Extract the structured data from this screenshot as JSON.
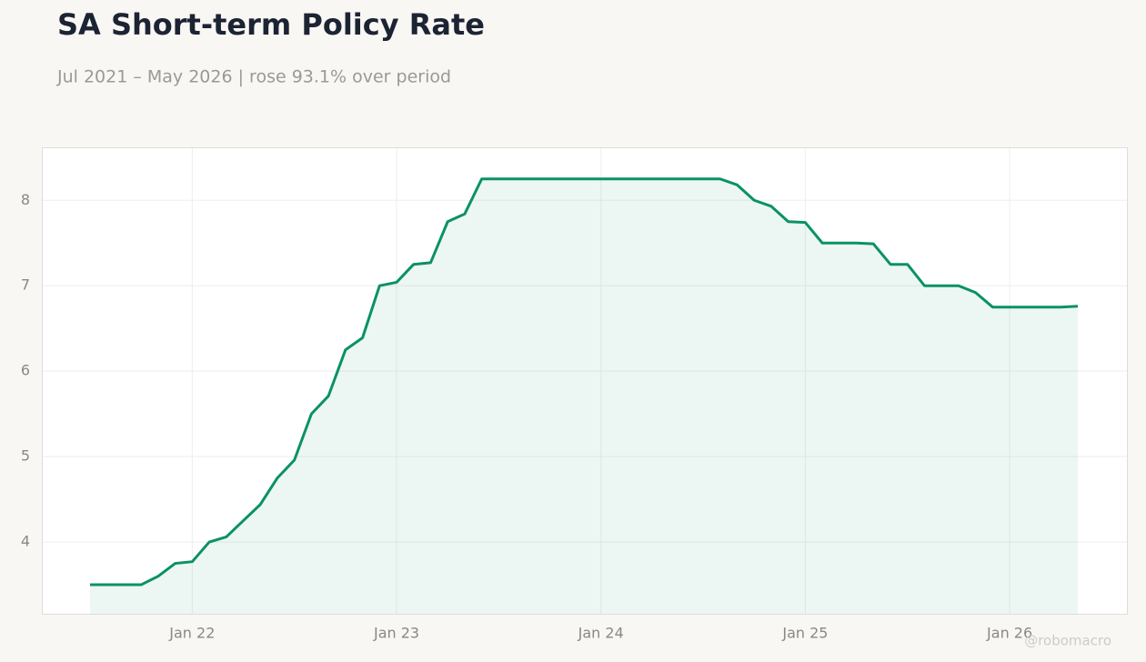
{
  "chart_data": {
    "type": "line",
    "title": "SA Short-term Policy Rate",
    "subtitle": "Jul 2021 – May 2026 | rose 93.1% over period",
    "watermark": "@robomacro",
    "x": [
      "2021-07",
      "2021-08",
      "2021-09",
      "2021-10",
      "2021-11",
      "2021-12",
      "2022-01",
      "2022-02",
      "2022-03",
      "2022-04",
      "2022-05",
      "2022-06",
      "2022-07",
      "2022-08",
      "2022-09",
      "2022-10",
      "2022-11",
      "2022-12",
      "2023-01",
      "2023-02",
      "2023-03",
      "2023-04",
      "2023-05",
      "2023-06",
      "2023-07",
      "2023-08",
      "2023-09",
      "2023-10",
      "2023-11",
      "2023-12",
      "2024-01",
      "2024-02",
      "2024-03",
      "2024-04",
      "2024-05",
      "2024-06",
      "2024-07",
      "2024-08",
      "2024-09",
      "2024-10",
      "2024-11",
      "2024-12",
      "2025-01",
      "2025-02",
      "2025-03",
      "2025-04",
      "2025-05",
      "2025-06",
      "2025-07",
      "2025-08",
      "2025-09",
      "2025-10",
      "2025-11",
      "2025-12",
      "2026-01",
      "2026-02",
      "2026-03",
      "2026-04",
      "2026-05"
    ],
    "series": [
      {
        "name": "Policy rate",
        "color": "#0a9167",
        "values": [
          3.5,
          3.5,
          3.5,
          3.5,
          3.6,
          3.75,
          3.77,
          4.0,
          4.06,
          4.25,
          4.44,
          4.75,
          4.96,
          5.5,
          5.71,
          6.25,
          6.39,
          7.0,
          7.04,
          7.25,
          7.27,
          7.75,
          7.84,
          8.25,
          8.25,
          8.25,
          8.25,
          8.25,
          8.25,
          8.25,
          8.25,
          8.25,
          8.25,
          8.25,
          8.25,
          8.25,
          8.25,
          8.25,
          8.18,
          8.0,
          7.93,
          7.75,
          7.74,
          7.5,
          7.5,
          7.5,
          7.49,
          7.25,
          7.25,
          7.0,
          7.0,
          7.0,
          6.92,
          6.75,
          6.75,
          6.75,
          6.75,
          6.75,
          6.76
        ]
      }
    ],
    "ylim": [
      3.16,
      8.62
    ],
    "yticks": [
      4,
      5,
      6,
      7,
      8
    ],
    "xticks": [
      {
        "value": "2022-01",
        "label": "Jan 22"
      },
      {
        "value": "2023-01",
        "label": "Jan 23"
      },
      {
        "value": "2024-01",
        "label": "Jan 24"
      },
      {
        "value": "2025-01",
        "label": "Jan 25"
      },
      {
        "value": "2026-01",
        "label": "Jan 26"
      }
    ],
    "grid": true,
    "area_fill": true
  }
}
